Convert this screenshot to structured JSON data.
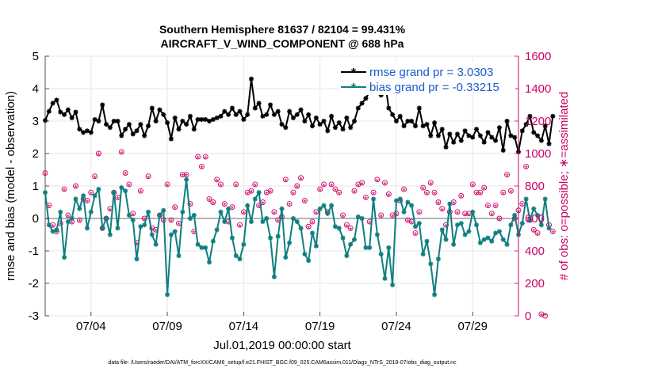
{
  "chart_data": {
    "type": "line",
    "title_line1": "Southern Hemisphere 81637 / 82104 = 99.431%",
    "title_line2": "AIRCRAFT_V_WIND_COMPONENT @ 688 hPa",
    "xlabel": "Jul.01,2019 00:00:00 start",
    "ylabel": "rmse and bias (model - observation)",
    "ylabel_right": "# of obs: o=possible; ∗=assimilated",
    "footnote": "data file: /Users/raeder/DAI/ATM_forcXX/CAM6_setup/f.e21.FHIST_BGC.f09_025.CAM6assim.011/Diags_NTrS_2019-07/obs_diag_output.nc",
    "xlim": [
      0,
      124
    ],
    "x_ticks": [
      {
        "x": 12,
        "label": "07/04"
      },
      {
        "x": 32,
        "label": "07/09"
      },
      {
        "x": 52,
        "label": "07/14"
      },
      {
        "x": 72,
        "label": "07/19"
      },
      {
        "x": 92,
        "label": "07/24"
      },
      {
        "x": 112,
        "label": "07/29"
      }
    ],
    "ylim": [
      -3,
      5
    ],
    "y_ticks": [
      "-3",
      "-2",
      "-1",
      "0",
      "1",
      "2",
      "3",
      "4",
      "5"
    ],
    "ylim_right": [
      0,
      1600
    ],
    "y_ticks_right": [
      "0",
      "200",
      "400",
      "600",
      "800",
      "1000",
      "1200",
      "1400",
      "1600"
    ],
    "legend": [
      "rmse grand pr = 3.0303",
      "bias grand pr = -0.33215"
    ],
    "colors": {
      "rmse": "#000000",
      "bias": "#0f7f80",
      "obs": "#cc0066",
      "zero_line": "#b3b3b3"
    },
    "series": [
      {
        "name": "rmse",
        "values": [
          3.02,
          3.3,
          3.55,
          3.65,
          3.28,
          3.2,
          3.35,
          3.1,
          3.28,
          2.75,
          2.65,
          2.7,
          2.65,
          3.05,
          3.0,
          3.5,
          2.9,
          2.8,
          3.0,
          3.0,
          2.55,
          2.75,
          2.9,
          2.6,
          2.7,
          2.9,
          2.55,
          2.85,
          3.4,
          3.0,
          3.35,
          3.2,
          2.95,
          2.45,
          3.1,
          2.75,
          3.0,
          2.9,
          3.15,
          2.75,
          3.05,
          3.05,
          3.05,
          3.0,
          3.05,
          3.1,
          3.15,
          3.3,
          3.2,
          3.4,
          3.2,
          3.3,
          3.05,
          3.2,
          4.3,
          3.4,
          3.55,
          3.15,
          3.2,
          3.5,
          3.2,
          3.3,
          2.9,
          2.8,
          3.3,
          3.1,
          3.2,
          3.35,
          3.0,
          3.2,
          2.85,
          3.1,
          2.9,
          3.0,
          2.7,
          3.15,
          2.8,
          2.95,
          2.75,
          3.1,
          2.8,
          3.0,
          3.4,
          3.55,
          3.7,
          3.9,
          3.95,
          4.1,
          3.8,
          4.25,
          3.4,
          3.2,
          3.0,
          3.15,
          2.85,
          3.0,
          3.0,
          2.85,
          3.4,
          2.85,
          2.9,
          2.55,
          2.95,
          2.55,
          2.75,
          2.2,
          2.6,
          2.35,
          2.6,
          2.4,
          2.7,
          2.55,
          2.5,
          2.75,
          2.55,
          2.35,
          2.65,
          2.5,
          2.4,
          2.8,
          2.1,
          3.0,
          2.55,
          2.5,
          2.05,
          2.7,
          2.9,
          3.15,
          2.65,
          2.55,
          2.4,
          2.85,
          2.3,
          3.15
        ]
      },
      {
        "name": "bias",
        "values": [
          0.8,
          -0.2,
          -0.4,
          -0.35,
          0.2,
          -1.2,
          -0.1,
          0.0,
          0.6,
          0.3,
          0.7,
          -0.3,
          0.2,
          0.7,
          0.9,
          -0.3,
          0.0,
          -0.5,
          0.8,
          -0.3,
          0.95,
          0.85,
          0.1,
          -0.05,
          -1.25,
          -0.25,
          -0.2,
          0.2,
          -0.5,
          -0.8,
          0.1,
          0.25,
          -2.35,
          -0.5,
          -0.4,
          -1.15,
          0.2,
          1.2,
          0.0,
          0.1,
          -0.8,
          -0.9,
          -0.9,
          -1.35,
          -0.7,
          -0.35,
          0.2,
          -0.1,
          0.3,
          -0.6,
          -1.15,
          -1.25,
          -0.8,
          0.4,
          -0.1,
          0.6,
          0.8,
          -0.1,
          0.0,
          -0.6,
          -1.8,
          -0.55,
          0.3,
          -1.2,
          -0.75,
          0.0,
          -0.1,
          -0.3,
          -1.1,
          -1.3,
          -0.45,
          -0.85,
          0.3,
          0.4,
          0.15,
          0.4,
          -0.25,
          -0.3,
          -0.6,
          -1.15,
          -0.8,
          -0.65,
          0.05,
          0.0,
          -0.9,
          -0.9,
          0.6,
          -0.5,
          -1.1,
          -1.85,
          -0.9,
          -2.05,
          0.55,
          0.6,
          0.2,
          0.5,
          0.4,
          -0.25,
          -0.15,
          -1.1,
          -0.7,
          -1.4,
          -2.35,
          -1.25,
          -0.35,
          -0.65,
          0.45,
          -0.8,
          -0.2,
          -0.15,
          -0.5,
          -0.4,
          0.2,
          -0.2,
          -0.75,
          -0.65,
          -0.6,
          -0.7,
          -0.45,
          -0.4,
          -0.65,
          -0.8,
          -0.2,
          0.1,
          -0.5,
          -0.15,
          0.6,
          -0.05,
          0.3,
          0.1,
          -0.2,
          0.6,
          -0.3
        ]
      },
      {
        "name": "obs_possible",
        "values": [
          880,
          680,
          560,
          520,
          570,
          780,
          620,
          580,
          800,
          590,
          720,
          710,
          760,
          860,
          1000,
          540,
          600,
          660,
          760,
          730,
          1010,
          880,
          810,
          630,
          450,
          770,
          600,
          860,
          540,
          530,
          620,
          590,
          810,
          590,
          670,
          570,
          870,
          870,
          690,
          520,
          980,
          920,
          980,
          720,
          700,
          840,
          810,
          690,
          580,
          670,
          810,
          560,
          640,
          760,
          770,
          810,
          680,
          700,
          760,
          770,
          640,
          590,
          610,
          840,
          690,
          760,
          800,
          850,
          710,
          550,
          580,
          640,
          780,
          810,
          640,
          810,
          780,
          760,
          620,
          560,
          540,
          770,
          810,
          820,
          730,
          580,
          760,
          840,
          620,
          820,
          750,
          620,
          630,
          710,
          780,
          590,
          580,
          510,
          640,
          790,
          760,
          820,
          760,
          700,
          660,
          560,
          640,
          700,
          640,
          740,
          630,
          630,
          810,
          760,
          760,
          790,
          680,
          630,
          680,
          600,
          760,
          870,
          770,
          600,
          650,
          690,
          920,
          590,
          530,
          510,
          10,
          0,
          560,
          520
        ]
      },
      {
        "name": "obs_assimilated",
        "values": [
          870,
          670,
          550,
          510,
          560,
          770,
          610,
          570,
          790,
          580,
          710,
          700,
          750,
          850,
          990,
          530,
          590,
          650,
          750,
          720,
          1000,
          870,
          800,
          620,
          440,
          760,
          590,
          850,
          530,
          520,
          610,
          580,
          800,
          580,
          660,
          560,
          860,
          860,
          680,
          510,
          970,
          910,
          970,
          710,
          690,
          830,
          800,
          680,
          570,
          660,
          800,
          550,
          630,
          750,
          760,
          800,
          670,
          690,
          750,
          760,
          630,
          580,
          600,
          830,
          680,
          750,
          790,
          840,
          700,
          540,
          570,
          630,
          770,
          800,
          630,
          800,
          770,
          750,
          610,
          550,
          530,
          760,
          800,
          810,
          720,
          570,
          750,
          830,
          610,
          810,
          740,
          610,
          620,
          700,
          770,
          580,
          570,
          500,
          630,
          780,
          750,
          810,
          750,
          690,
          650,
          550,
          630,
          690,
          630,
          730,
          620,
          620,
          800,
          750,
          750,
          780,
          670,
          620,
          670,
          590,
          750,
          860,
          760,
          590,
          640,
          680,
          910,
          580,
          520,
          500,
          0,
          0,
          550,
          510
        ]
      }
    ]
  }
}
